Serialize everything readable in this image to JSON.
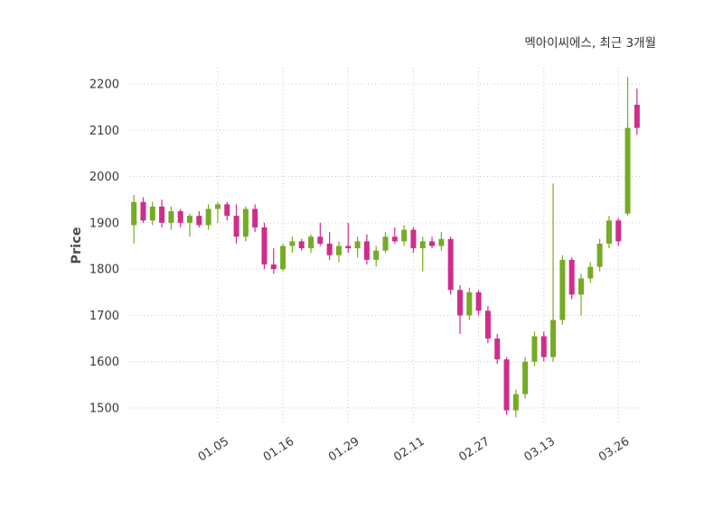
{
  "header": {
    "title": "멕아이씨에스, 최근 3개월"
  },
  "chart_data": {
    "type": "candlestick",
    "title": "멕아이씨에스, 최근 3개월",
    "ylabel": "Price",
    "ylim": [
      1465,
      2235
    ],
    "yticks": [
      1500,
      1600,
      1700,
      1800,
      1900,
      2000,
      2100,
      2200
    ],
    "xticks": [
      {
        "index": 9,
        "label": "01.05"
      },
      {
        "index": 16,
        "label": "01.16"
      },
      {
        "index": 23,
        "label": "01.29"
      },
      {
        "index": 30,
        "label": "02.11"
      },
      {
        "index": 37,
        "label": "02.27"
      },
      {
        "index": 44,
        "label": "03.13"
      },
      {
        "index": 52,
        "label": "03.26"
      }
    ],
    "grid": "dotted",
    "legend": "none",
    "colors": {
      "up": "#76ab25",
      "down": "#cf2d8c",
      "grid": "#c8c8c8",
      "text": "#3a3a3a"
    },
    "candles": [
      [
        1895,
        1960,
        1855,
        1945
      ],
      [
        1945,
        1955,
        1900,
        1905
      ],
      [
        1905,
        1945,
        1895,
        1935
      ],
      [
        1935,
        1950,
        1890,
        1900
      ],
      [
        1900,
        1935,
        1885,
        1925
      ],
      [
        1925,
        1930,
        1890,
        1900
      ],
      [
        1900,
        1920,
        1870,
        1915
      ],
      [
        1915,
        1925,
        1890,
        1895
      ],
      [
        1895,
        1940,
        1885,
        1930
      ],
      [
        1930,
        1945,
        1900,
        1940
      ],
      [
        1940,
        1945,
        1905,
        1915
      ],
      [
        1915,
        1940,
        1855,
        1870
      ],
      [
        1870,
        1935,
        1860,
        1930
      ],
      [
        1930,
        1940,
        1880,
        1890
      ],
      [
        1890,
        1900,
        1800,
        1810
      ],
      [
        1810,
        1845,
        1790,
        1800
      ],
      [
        1800,
        1855,
        1795,
        1850
      ],
      [
        1850,
        1870,
        1835,
        1860
      ],
      [
        1860,
        1865,
        1840,
        1845
      ],
      [
        1845,
        1875,
        1835,
        1870
      ],
      [
        1870,
        1900,
        1850,
        1855
      ],
      [
        1855,
        1880,
        1820,
        1830
      ],
      [
        1830,
        1860,
        1815,
        1850
      ],
      [
        1850,
        1900,
        1835,
        1845
      ],
      [
        1845,
        1870,
        1825,
        1860
      ],
      [
        1860,
        1875,
        1810,
        1820
      ],
      [
        1820,
        1850,
        1805,
        1840
      ],
      [
        1840,
        1880,
        1835,
        1870
      ],
      [
        1870,
        1890,
        1855,
        1860
      ],
      [
        1860,
        1895,
        1850,
        1885
      ],
      [
        1885,
        1890,
        1835,
        1845
      ],
      [
        1845,
        1870,
        1795,
        1860
      ],
      [
        1860,
        1870,
        1845,
        1850
      ],
      [
        1850,
        1880,
        1840,
        1865
      ],
      [
        1865,
        1870,
        1745,
        1755
      ],
      [
        1755,
        1765,
        1660,
        1700
      ],
      [
        1700,
        1760,
        1690,
        1750
      ],
      [
        1750,
        1755,
        1700,
        1710
      ],
      [
        1710,
        1720,
        1640,
        1650
      ],
      [
        1650,
        1660,
        1595,
        1605
      ],
      [
        1605,
        1610,
        1485,
        1495
      ],
      [
        1495,
        1540,
        1480,
        1530
      ],
      [
        1530,
        1610,
        1520,
        1600
      ],
      [
        1600,
        1665,
        1590,
        1655
      ],
      [
        1655,
        1665,
        1600,
        1610
      ],
      [
        1610,
        1985,
        1600,
        1690
      ],
      [
        1690,
        1830,
        1680,
        1820
      ],
      [
        1820,
        1825,
        1735,
        1745
      ],
      [
        1745,
        1790,
        1700,
        1780
      ],
      [
        1780,
        1815,
        1770,
        1805
      ],
      [
        1805,
        1865,
        1795,
        1855
      ],
      [
        1855,
        1915,
        1845,
        1905
      ],
      [
        1905,
        1910,
        1850,
        1860
      ],
      [
        1920,
        2215,
        1915,
        2105
      ],
      [
        2155,
        2190,
        2090,
        2105
      ]
    ]
  }
}
